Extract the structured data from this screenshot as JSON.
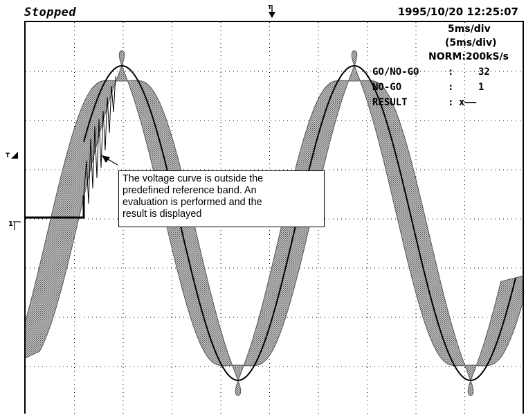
{
  "header": {
    "status": "Stopped",
    "datetime": "1995/10/20  12:25:07"
  },
  "timebase": {
    "div": "5ms/div",
    "div_paren": "(5ms/div)",
    "sampling": "NORM:200kS/s"
  },
  "gonogo": {
    "rows": [
      {
        "label": "GO/NO-GO",
        "sep": ":",
        "value": "32"
      },
      {
        "label": "NO-GO",
        "sep": ":",
        "value": "1"
      },
      {
        "label": "RESULT",
        "sep": ":",
        "value": "x——"
      }
    ]
  },
  "markers": {
    "trigger_level": "T",
    "channel1": "1"
  },
  "callout": {
    "lines": [
      "The voltage curve is outside the",
      "predefined reference band. An",
      "evaluation is performed and the",
      "result is displayed"
    ]
  },
  "colors": {
    "background": "#ffffff",
    "trace": "#000000",
    "band": "#8a8a8a"
  }
}
